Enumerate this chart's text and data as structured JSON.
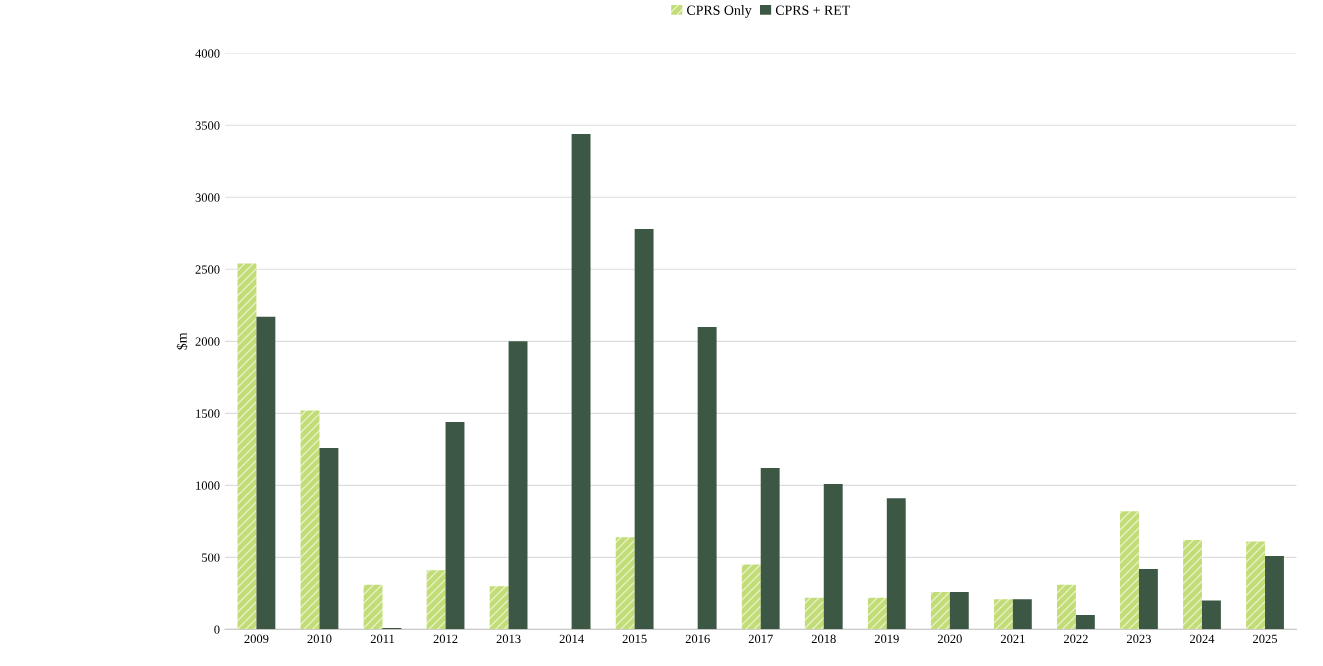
{
  "chart_data": {
    "type": "bar",
    "ylabel": "$m",
    "categories": [
      "2009",
      "2010",
      "2011",
      "2012",
      "2013",
      "2014",
      "2015",
      "2016",
      "2017",
      "2018",
      "2019",
      "2020",
      "2021",
      "2022",
      "2023",
      "2024",
      "2025"
    ],
    "series": [
      {
        "name": "CPRS Only",
        "color": "#c2dc78",
        "values": [
          2540,
          1520,
          310,
          410,
          300,
          0,
          640,
          0,
          450,
          220,
          220,
          260,
          210,
          310,
          820,
          620,
          610
        ]
      },
      {
        "name": "CPRS + RET",
        "color": "#3d5745",
        "values": [
          2170,
          1260,
          10,
          1440,
          2000,
          3440,
          2780,
          2100,
          1120,
          1010,
          910,
          260,
          210,
          100,
          420,
          200,
          510
        ]
      }
    ],
    "ylim": [
      0,
      4000
    ],
    "yticks": [
      0,
      500,
      1000,
      1500,
      2000,
      2500,
      3000,
      3500,
      4000
    ],
    "grid": "y",
    "legend": "top"
  }
}
